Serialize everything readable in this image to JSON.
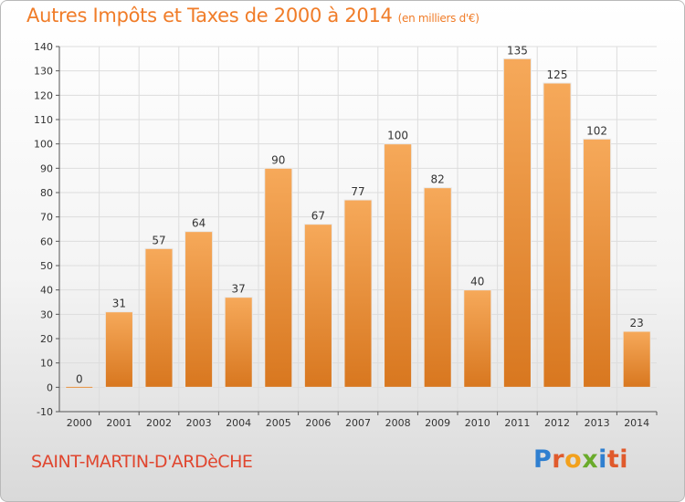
{
  "header": {
    "title": "Autres Impôts et Taxes de 2000 à 2014",
    "unit": "(en milliers d'€)"
  },
  "footer": {
    "commune": "SAINT-MARTIN-D'ARDèCHE",
    "logo_letters": [
      "P",
      "r",
      "o",
      "x",
      "i",
      "ti"
    ]
  },
  "colors": {
    "title": "#f07c28",
    "commune": "#e0462f",
    "bar_light": "#f6a95a",
    "bar_dark": "#d8771f",
    "grid": "#dddddd"
  },
  "chart_data": {
    "type": "bar",
    "title": "Autres Impôts et Taxes de 2000 à 2014",
    "ylabel": "",
    "xlabel": "",
    "categories": [
      "2000",
      "2001",
      "2002",
      "2003",
      "2004",
      "2005",
      "2006",
      "2007",
      "2008",
      "2009",
      "2010",
      "2011",
      "2012",
      "2013",
      "2014"
    ],
    "values": [
      0,
      31,
      57,
      64,
      37,
      90,
      67,
      77,
      100,
      82,
      40,
      135,
      125,
      102,
      23
    ],
    "ylim": [
      -10,
      140
    ],
    "yticks": [
      -10,
      0,
      10,
      20,
      30,
      40,
      50,
      60,
      70,
      80,
      90,
      100,
      110,
      120,
      130,
      140
    ],
    "grid": true,
    "data_labels": true
  }
}
